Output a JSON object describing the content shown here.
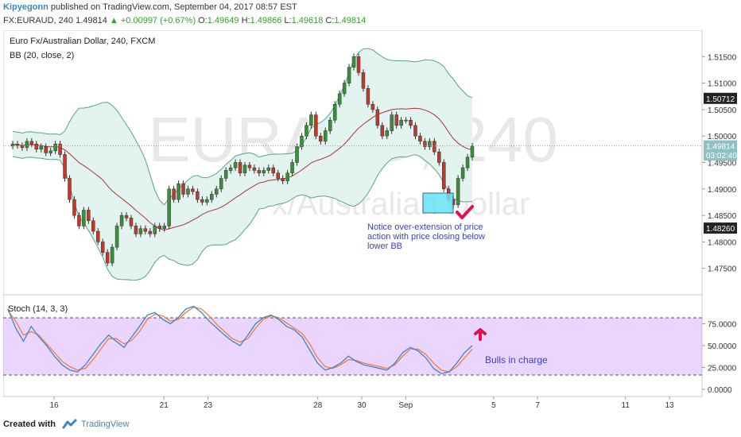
{
  "header": {
    "author": "Kipyegonn",
    "published_text": "published on TradingView.com, September 04, 2017 08:57 EST",
    "symbol_line": "FX:EURAUD, 240  1.49814",
    "change": "▲ +0.00997 (+0.67%)",
    "o_label": "O:",
    "o_value": "1.49649",
    "h_label": "H:",
    "h_value": "1.49866",
    "l_label": "L:",
    "l_value": "1.49618",
    "c_label": "C:",
    "c_value": "1.49814"
  },
  "chart_data": {
    "type": "candlestick",
    "title": "Euro Fx/Australian Dollar, 240, FXCM",
    "indicator_label": "BB (20, close, 2)",
    "watermark_symbol": "EURAUD, 240",
    "watermark_name": "Euro Fx/Australian Dollar",
    "ylim": [
      1.47,
      1.52
    ],
    "y_ticks": [
      "1.51500",
      "1.51000",
      "1.50500",
      "1.50000",
      "1.49500",
      "1.49000",
      "1.48500",
      "1.48000",
      "1.47500"
    ],
    "price_labels": [
      {
        "text": "1.50712",
        "value": 1.50712,
        "color": "#222222"
      },
      {
        "text": "1.49814",
        "value": 1.49814,
        "color": "#8dc2c2"
      },
      {
        "text": "03:02:40",
        "value": 1.4964,
        "color": "#8dc2c2"
      },
      {
        "text": "1.48260",
        "value": 1.4826,
        "color": "#222222"
      }
    ],
    "current_price": 1.49814,
    "x_ticks": [
      {
        "label": "16",
        "day": 16
      },
      {
        "label": "21",
        "day": 21
      },
      {
        "label": "23",
        "day": 23
      },
      {
        "label": "28",
        "day": 28
      },
      {
        "label": "30",
        "day": 30
      },
      {
        "label": "Sep",
        "day": 32
      },
      {
        "label": "5",
        "day": 36
      },
      {
        "label": "7",
        "day": 38
      },
      {
        "label": "11",
        "day": 42
      },
      {
        "label": "13",
        "day": 44
      }
    ],
    "close_series": [
      1.4985,
      1.4982,
      1.4978,
      1.499,
      1.4985,
      1.4975,
      1.498,
      1.4968,
      1.4972,
      1.4985,
      1.4965,
      1.492,
      1.488,
      1.485,
      1.483,
      1.486,
      1.484,
      1.482,
      1.48,
      1.478,
      1.476,
      1.479,
      1.483,
      1.485,
      1.4845,
      1.483,
      1.4815,
      1.4825,
      1.482,
      1.4815,
      1.483,
      1.4825,
      1.483,
      1.49,
      1.488,
      1.491,
      1.489,
      1.49,
      1.4895,
      1.488,
      1.4875,
      1.488,
      1.489,
      1.49,
      1.492,
      1.4935,
      1.494,
      1.495,
      1.493,
      1.4945,
      1.494,
      1.4935,
      1.493,
      1.4935,
      1.494,
      1.493,
      1.492,
      1.4915,
      1.493,
      1.495,
      1.498,
      1.5,
      1.502,
      1.504,
      1.5,
      1.499,
      1.501,
      1.503,
      1.506,
      1.508,
      1.51,
      1.513,
      1.515,
      1.512,
      1.509,
      1.506,
      1.505,
      1.502,
      1.5,
      1.501,
      1.504,
      1.502,
      1.503,
      1.503,
      1.502,
      1.5,
      1.499,
      1.498,
      1.499,
      1.497,
      1.495,
      1.49,
      1.488,
      1.487,
      1.492,
      1.494,
      1.496,
      1.4981
    ],
    "annotation_text_lines": [
      "Notice over-extension of price",
      "action with price closing below",
      "lower BB"
    ],
    "stoch": {
      "label": "Stoch (14, 3, 3)",
      "ylim": [
        0,
        100
      ],
      "y_ticks": [
        "75.0000",
        "50.0000",
        "25.0000",
        "0.0000"
      ],
      "bands": [
        20,
        80
      ],
      "band_color": "#d9b3ff",
      "k_color": "#3d85c6",
      "d_color": "#f57c3b",
      "k": [
        92,
        70,
        55,
        72,
        60,
        50,
        38,
        28,
        22,
        20,
        28,
        40,
        52,
        62,
        55,
        48,
        60,
        72,
        85,
        88,
        80,
        75,
        82,
        92,
        95,
        88,
        78,
        70,
        62,
        55,
        50,
        62,
        75,
        82,
        85,
        80,
        72,
        68,
        60,
        45,
        30,
        22,
        25,
        30,
        38,
        32,
        28,
        26,
        24,
        22,
        30,
        42,
        48,
        44,
        36,
        24,
        18,
        20,
        30,
        42,
        50
      ],
      "d": [
        90,
        78,
        62,
        66,
        62,
        52,
        42,
        32,
        26,
        22,
        24,
        34,
        46,
        58,
        58,
        52,
        56,
        66,
        80,
        86,
        84,
        78,
        80,
        88,
        94,
        92,
        84,
        74,
        66,
        58,
        54,
        58,
        70,
        80,
        84,
        82,
        76,
        70,
        64,
        52,
        36,
        26,
        24,
        28,
        34,
        33,
        30,
        28,
        26,
        24,
        28,
        38,
        46,
        46,
        40,
        30,
        22,
        20,
        26,
        36,
        46
      ]
    },
    "stoch_annotation": "Bulls in charge",
    "colors": {
      "up": "#3a8f3a",
      "down": "#c0392b",
      "bb_fill": "#e3f4f0",
      "bb_line": "#5aa28a",
      "basis": "#a93535",
      "highlight": "#68e2f5",
      "annotation_text": "#3a3fc8",
      "arrow": "#e0104f"
    }
  },
  "footer": {
    "created_with": "Created with",
    "brand": "TradingView"
  }
}
